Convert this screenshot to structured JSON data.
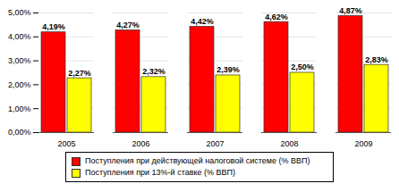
{
  "chart_data": {
    "type": "bar",
    "categories": [
      "2005",
      "2006",
      "2007",
      "2008",
      "2009"
    ],
    "series": [
      {
        "name": "Поступления при действующей налоговой системе (% ВВП)",
        "color": "#ff0000",
        "values": [
          4.19,
          4.27,
          4.42,
          4.62,
          4.87
        ],
        "value_labels": [
          "4,19%",
          "4,27%",
          "4,42%",
          "4,62%",
          "4,87%"
        ]
      },
      {
        "name": "Поступления при 13%-й ставке (% ВВП)",
        "color": "#ffff00",
        "values": [
          2.27,
          2.32,
          2.39,
          2.5,
          2.83
        ],
        "value_labels": [
          "2,27%",
          "2,32%",
          "2,39%",
          "2,50%",
          "2,83%"
        ]
      }
    ],
    "ylim": [
      0,
      5
    ],
    "yticks": [
      {
        "value": 0,
        "label": "0,00%"
      },
      {
        "value": 1,
        "label": "1,00%"
      },
      {
        "value": 2,
        "label": "2,00%"
      },
      {
        "value": 3,
        "label": "3,00%"
      },
      {
        "value": 4,
        "label": "4,00%"
      },
      {
        "value": 5,
        "label": "5,00%"
      }
    ],
    "grid": true,
    "data_labels": true,
    "legend": "bottom"
  }
}
